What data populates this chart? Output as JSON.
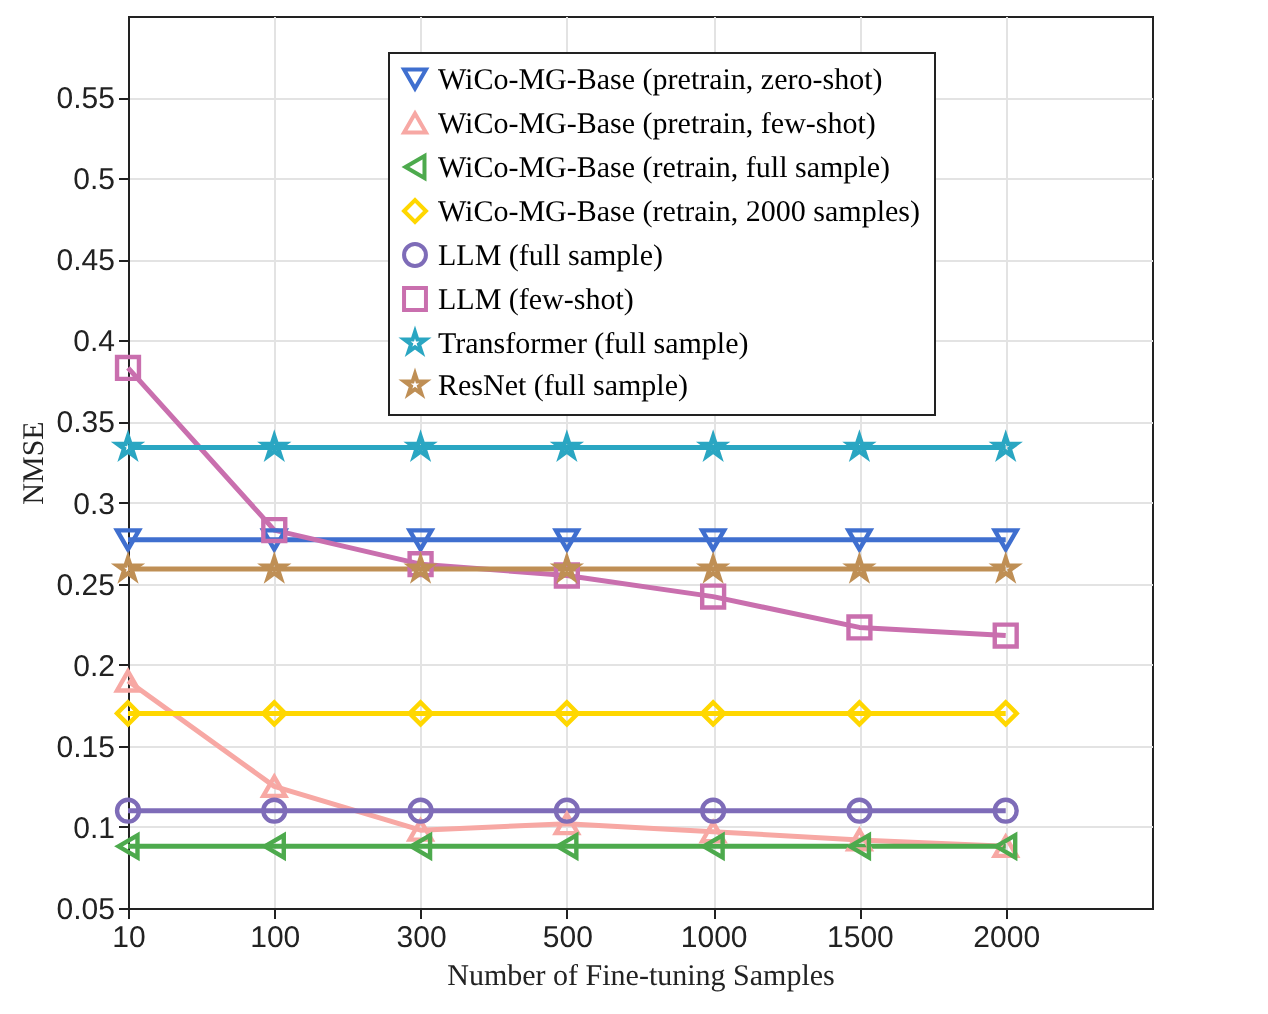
{
  "chart_data": {
    "type": "line",
    "xlabel": "Number of Fine-tuning Samples",
    "ylabel": "NMSE",
    "categories": [
      "10",
      "100",
      "300",
      "500",
      "1000",
      "1500",
      "2000"
    ],
    "ylim": [
      0.05,
      0.6
    ],
    "yticks": [
      0.05,
      0.1,
      0.15,
      0.2,
      0.25,
      0.3,
      0.35,
      0.4,
      0.45,
      0.5,
      0.55
    ],
    "grid": true,
    "legend": "top",
    "line_style": "solid",
    "series": [
      {
        "name": "WiCo-MG-Base (pretrain, zero-shot)",
        "color": "#3f6fcf",
        "marker": "triangle-down",
        "values": [
          0.277,
          0.277,
          0.277,
          0.277,
          0.277,
          0.277,
          0.277
        ]
      },
      {
        "name": "WiCo-MG-Base (pretrain, few-shot)",
        "color": "#f7a8a4",
        "marker": "triangle",
        "values": [
          0.19,
          0.125,
          0.098,
          0.102,
          0.097,
          0.092,
          0.088
        ]
      },
      {
        "name": "WiCo-MG-Base (retrain, full sample)",
        "color": "#4daa4d",
        "marker": "triangle-left",
        "values": [
          0.088,
          0.088,
          0.088,
          0.088,
          0.088,
          0.088,
          0.088
        ]
      },
      {
        "name": "WiCo-MG-Base (retrain, 2000 samples)",
        "color": "#ffd700",
        "marker": "diamond",
        "values": [
          0.17,
          0.17,
          0.17,
          0.17,
          0.17,
          0.17,
          0.17
        ]
      },
      {
        "name": "LLM (full sample)",
        "color": "#7e6cb8",
        "marker": "circle",
        "values": [
          0.11,
          0.11,
          0.11,
          0.11,
          0.11,
          0.11,
          0.11
        ]
      },
      {
        "name": "LLM (few-shot)",
        "color": "#c96fae",
        "marker": "square",
        "values": [
          0.383,
          0.283,
          0.262,
          0.255,
          0.242,
          0.223,
          0.218
        ]
      },
      {
        "name": "Transformer (full sample)",
        "color": "#2aa6c2",
        "marker": "star",
        "values": [
          0.334,
          0.334,
          0.334,
          0.334,
          0.334,
          0.334,
          0.334
        ]
      },
      {
        "name": "ResNet (full sample)",
        "color": "#bf8f55",
        "marker": "star",
        "values": [
          0.259,
          0.259,
          0.259,
          0.259,
          0.259,
          0.259,
          0.259
        ]
      }
    ]
  }
}
